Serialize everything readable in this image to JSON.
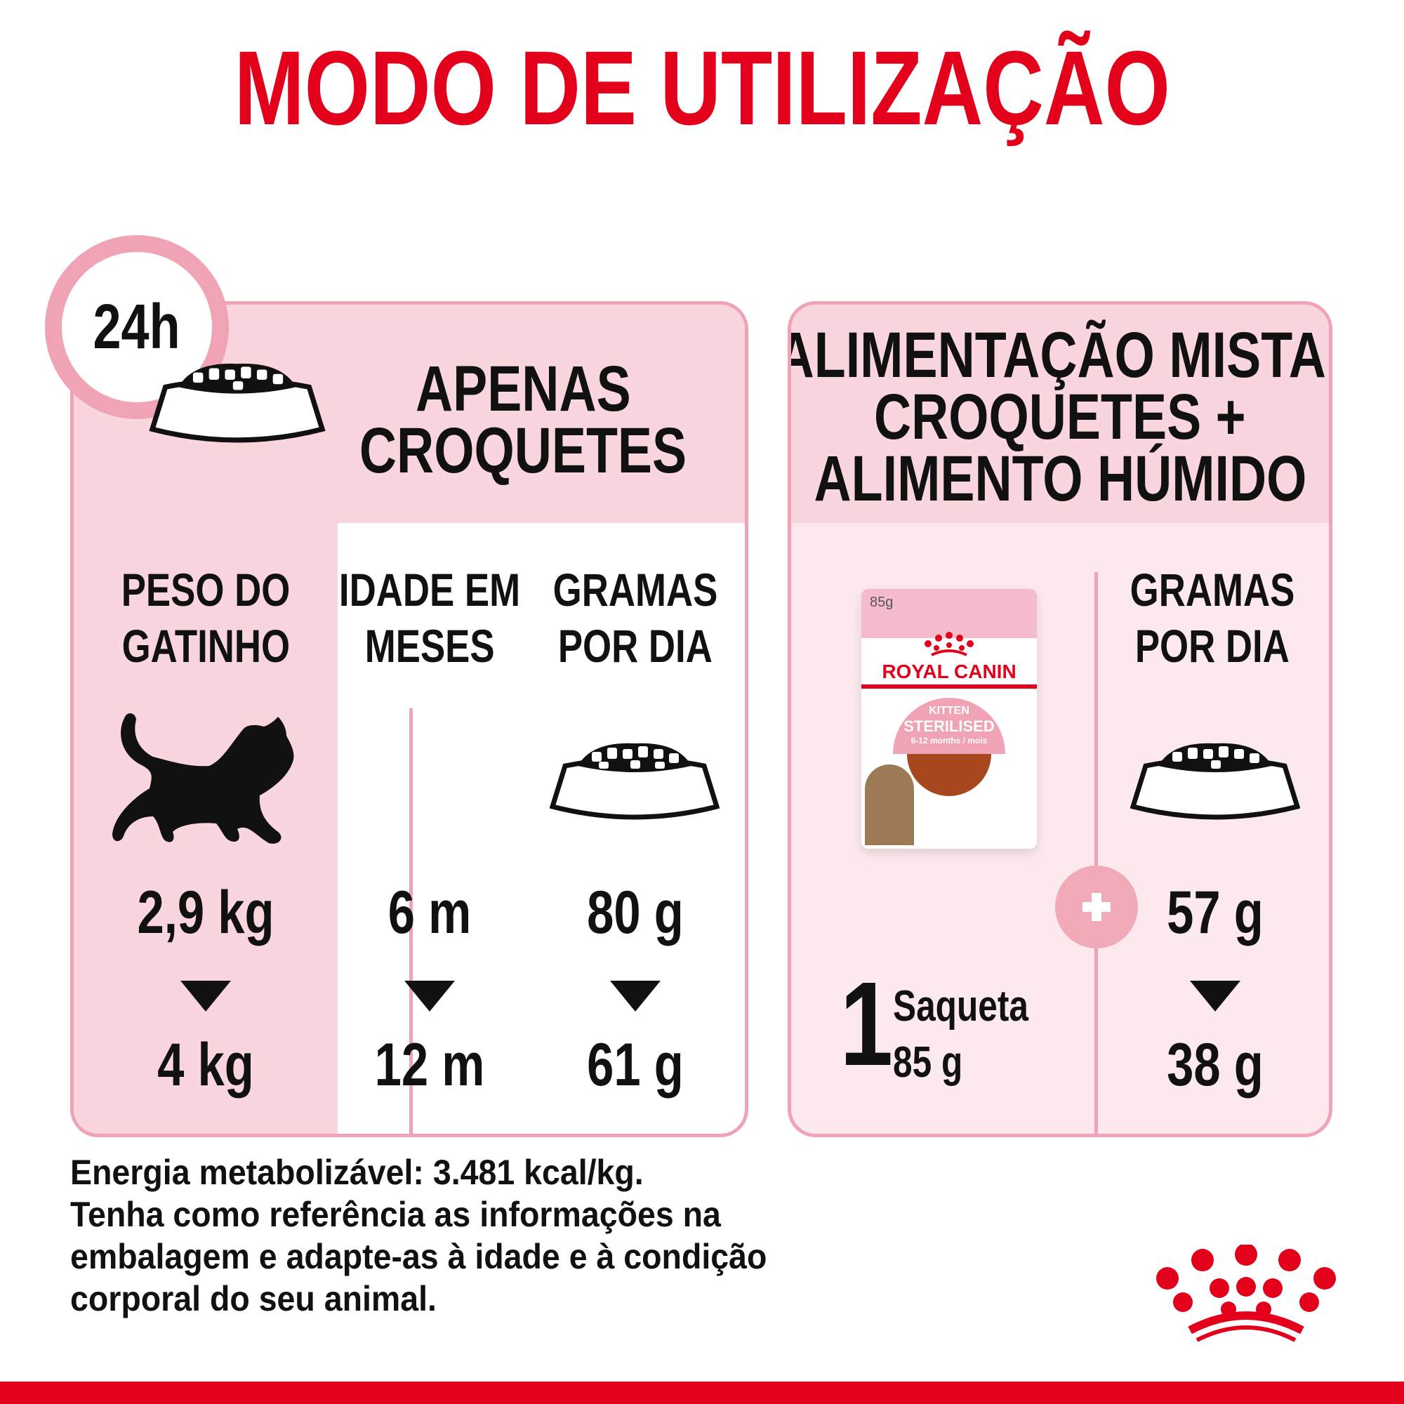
{
  "title": "MODO DE UTILIZAÇÃO",
  "colors": {
    "brand_red": "#e2001a",
    "pink_border": "#f0a3b4",
    "pink_fill": "#f9d5de",
    "pink_light": "#fce9ee"
  },
  "clock": {
    "label": "24h",
    "icon": "clock-icon"
  },
  "left": {
    "title_line1": "APENAS",
    "title_line2": "CROQUETES",
    "columns": [
      {
        "h1": "PESO DO",
        "h2": "GATINHO",
        "icon": "kitten-silhouette-icon",
        "from": "2,9 kg",
        "to": "4 kg"
      },
      {
        "h1": "IDADE EM",
        "h2": "MESES",
        "from": "6 m",
        "to": "12 m"
      },
      {
        "h1": "GRAMAS",
        "h2": "POR DIA",
        "icon": "food-bowl-icon",
        "from": "80 g",
        "to": "61 g"
      }
    ]
  },
  "right": {
    "title_line1": "ALIMENTAÇÃO MISTA:",
    "title_line2": "CROQUETES +",
    "title_line3": "ALIMENTO HÚMIDO",
    "pouch": {
      "weight": "85g",
      "brand": "ROYAL CANIN",
      "line1": "KITTEN",
      "line2": "STERILISED",
      "line3": "6-12 months / mois"
    },
    "pouch_count": "1",
    "pouch_label": "Saqueta",
    "pouch_weight": "85 g",
    "column": {
      "h1": "GRAMAS",
      "h2": "POR DIA",
      "icon": "food-bowl-icon",
      "from": "57 g",
      "to": "38 g"
    },
    "plus_icon": "plus-icon"
  },
  "footer": {
    "lines": [
      "Energia metabolizável: 3.481 kcal/kg.",
      "Tenha como referência as informações na",
      "embalagem e adapte-as à idade e à condição",
      "corporal do seu animal."
    ]
  },
  "logo": {
    "icon": "royal-canin-crown-logo"
  }
}
